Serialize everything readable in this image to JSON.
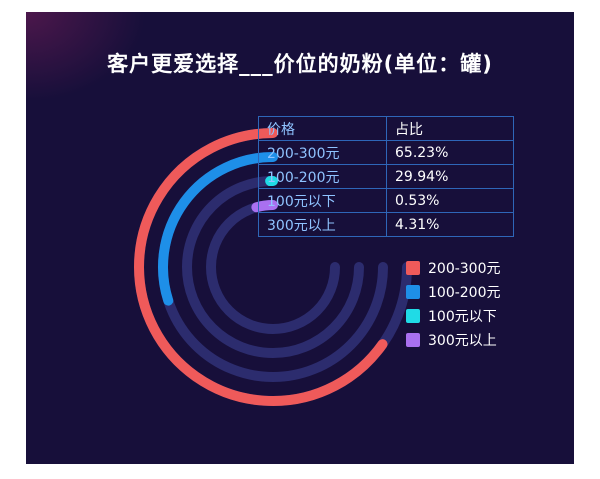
{
  "title": "客户更爱选择___价位的奶粉(单位：罐)",
  "table": {
    "headers": [
      "价格",
      "占比"
    ],
    "rows": [
      [
        "200-300元",
        "65.23%"
      ],
      [
        "100-200元",
        "29.94%"
      ],
      [
        "100元以下",
        "0.53%"
      ],
      [
        "300元以上",
        "4.31%"
      ]
    ]
  },
  "colors": {
    "background": "#170f3a",
    "track": "#2c2c6e",
    "series": [
      "#ef5a5a",
      "#1e8fe8",
      "#20dbe6",
      "#a970f0"
    ]
  },
  "chart_data": {
    "type": "radial-bar",
    "categories": [
      "200-300元",
      "100-200元",
      "100元以下",
      "300元以上"
    ],
    "values": [
      65.23,
      29.94,
      0.53,
      4.31
    ],
    "unit": "%",
    "legend_position": "bottom-right"
  }
}
